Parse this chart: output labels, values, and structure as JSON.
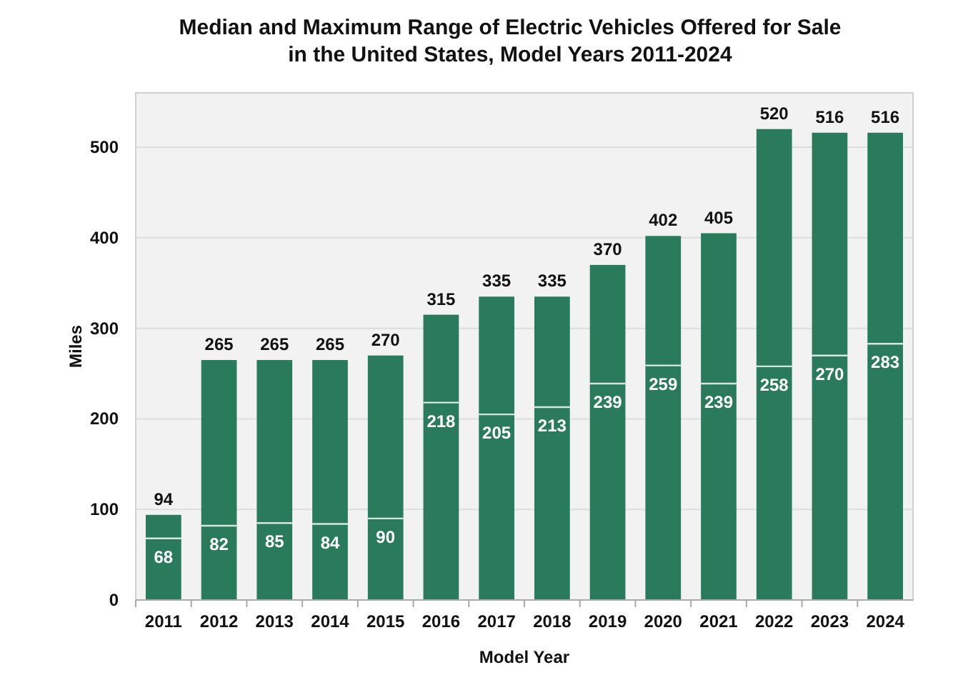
{
  "chart_data": {
    "type": "bar",
    "title": "Median and Maximum Range of Electric Vehicles Offered for Sale\nin the United States, Model Years 2011-2024",
    "xlabel": "Model Year",
    "ylabel": "Miles",
    "categories": [
      "2011",
      "2012",
      "2013",
      "2014",
      "2015",
      "2016",
      "2017",
      "2018",
      "2019",
      "2020",
      "2021",
      "2022",
      "2023",
      "2024"
    ],
    "stacked": true,
    "series": [
      {
        "color": "#2a7b5c",
        "values": [
          68,
          82,
          85,
          84,
          90,
          218,
          205,
          213,
          239,
          259,
          239,
          258,
          270,
          283
        ],
        "value_labels": [
          "68",
          "82",
          "85",
          "84",
          "90",
          "218",
          "205",
          "213",
          "239",
          "259",
          "239",
          "258",
          "270",
          "283"
        ]
      },
      {
        "color": "#2a7b5c",
        "values": [
          26,
          183,
          180,
          181,
          180,
          97,
          130,
          122,
          131,
          143,
          166,
          262,
          246,
          233
        ]
      }
    ],
    "totals": [
      "94",
      "265",
      "265",
      "265",
      "270",
      "315",
      "335",
      "335",
      "370",
      "402",
      "405",
      "520",
      "516",
      "516"
    ],
    "ylim": [
      0,
      560
    ],
    "yticks": [
      0,
      100,
      200,
      300,
      400,
      500
    ],
    "grid": "y"
  }
}
